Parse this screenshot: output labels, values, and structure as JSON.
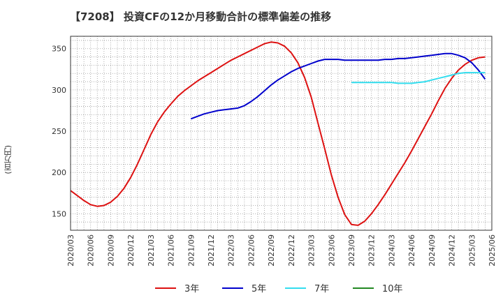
{
  "chart_data": {
    "type": "line",
    "title": "【7208】 投資CFの12か月移動合計の標準偏差の推移",
    "ylabel": "(百万円)",
    "xlabel": "",
    "ylim": [
      130,
      365
    ],
    "xlim": [
      "2020/03",
      "2025/06"
    ],
    "yticks": [
      150,
      200,
      250,
      300,
      350
    ],
    "xticks": [
      "2020/03",
      "2020/06",
      "2020/09",
      "2020/12",
      "2021/03",
      "2021/06",
      "2021/09",
      "2021/12",
      "2022/03",
      "2022/06",
      "2022/09",
      "2022/12",
      "2023/03",
      "2023/06",
      "2023/09",
      "2023/12",
      "2024/03",
      "2024/06",
      "2024/09",
      "2024/12",
      "2025/03",
      "2025/06"
    ],
    "grid": true,
    "legend_position": "bottom",
    "series": [
      {
        "name": "3年",
        "color": "#dd1111",
        "points": [
          [
            "2020/03",
            178
          ],
          [
            "2020/04",
            172
          ],
          [
            "2020/05",
            166
          ],
          [
            "2020/06",
            161
          ],
          [
            "2020/07",
            159
          ],
          [
            "2020/08",
            160
          ],
          [
            "2020/09",
            164
          ],
          [
            "2020/10",
            171
          ],
          [
            "2020/11",
            181
          ],
          [
            "2020/12",
            194
          ],
          [
            "2021/01",
            210
          ],
          [
            "2021/02",
            228
          ],
          [
            "2021/03",
            246
          ],
          [
            "2021/04",
            261
          ],
          [
            "2021/05",
            273
          ],
          [
            "2021/06",
            283
          ],
          [
            "2021/07",
            292
          ],
          [
            "2021/08",
            299
          ],
          [
            "2021/09",
            305
          ],
          [
            "2021/10",
            311
          ],
          [
            "2021/11",
            316
          ],
          [
            "2021/12",
            321
          ],
          [
            "2022/01",
            326
          ],
          [
            "2022/02",
            331
          ],
          [
            "2022/03",
            336
          ],
          [
            "2022/04",
            340
          ],
          [
            "2022/05",
            344
          ],
          [
            "2022/06",
            348
          ],
          [
            "2022/07",
            352
          ],
          [
            "2022/08",
            356
          ],
          [
            "2022/09",
            358
          ],
          [
            "2022/10",
            357
          ],
          [
            "2022/11",
            353
          ],
          [
            "2022/12",
            345
          ],
          [
            "2023/01",
            333
          ],
          [
            "2023/02",
            315
          ],
          [
            "2023/03",
            291
          ],
          [
            "2023/04",
            260
          ],
          [
            "2023/05",
            229
          ],
          [
            "2023/06",
            197
          ],
          [
            "2023/07",
            170
          ],
          [
            "2023/08",
            149
          ],
          [
            "2023/09",
            137
          ],
          [
            "2023/10",
            136
          ],
          [
            "2023/11",
            141
          ],
          [
            "2023/12",
            150
          ],
          [
            "2024/01",
            161
          ],
          [
            "2024/02",
            173
          ],
          [
            "2024/03",
            186
          ],
          [
            "2024/04",
            199
          ],
          [
            "2024/05",
            212
          ],
          [
            "2024/06",
            226
          ],
          [
            "2024/07",
            241
          ],
          [
            "2024/08",
            256
          ],
          [
            "2024/09",
            271
          ],
          [
            "2024/10",
            287
          ],
          [
            "2024/11",
            302
          ],
          [
            "2024/12",
            314
          ],
          [
            "2025/01",
            324
          ],
          [
            "2025/02",
            331
          ],
          [
            "2025/03",
            336
          ],
          [
            "2025/04",
            339
          ],
          [
            "2025/05",
            340
          ]
        ]
      },
      {
        "name": "5年",
        "color": "#0000cc",
        "points": [
          [
            "2021/09",
            265
          ],
          [
            "2021/10",
            268
          ],
          [
            "2021/11",
            271
          ],
          [
            "2021/12",
            273
          ],
          [
            "2022/01",
            275
          ],
          [
            "2022/02",
            276
          ],
          [
            "2022/03",
            277
          ],
          [
            "2022/04",
            278
          ],
          [
            "2022/05",
            281
          ],
          [
            "2022/06",
            286
          ],
          [
            "2022/07",
            292
          ],
          [
            "2022/08",
            299
          ],
          [
            "2022/09",
            306
          ],
          [
            "2022/10",
            312
          ],
          [
            "2022/11",
            317
          ],
          [
            "2022/12",
            322
          ],
          [
            "2023/01",
            326
          ],
          [
            "2023/02",
            329
          ],
          [
            "2023/03",
            332
          ],
          [
            "2023/04",
            335
          ],
          [
            "2023/05",
            337
          ],
          [
            "2023/06",
            337
          ],
          [
            "2023/07",
            337
          ],
          [
            "2023/08",
            336
          ],
          [
            "2023/09",
            336
          ],
          [
            "2023/10",
            336
          ],
          [
            "2023/11",
            336
          ],
          [
            "2023/12",
            336
          ],
          [
            "2024/01",
            336
          ],
          [
            "2024/02",
            337
          ],
          [
            "2024/03",
            337
          ],
          [
            "2024/04",
            338
          ],
          [
            "2024/05",
            338
          ],
          [
            "2024/06",
            339
          ],
          [
            "2024/07",
            340
          ],
          [
            "2024/08",
            341
          ],
          [
            "2024/09",
            342
          ],
          [
            "2024/10",
            343
          ],
          [
            "2024/11",
            344
          ],
          [
            "2024/12",
            344
          ],
          [
            "2025/01",
            342
          ],
          [
            "2025/02",
            339
          ],
          [
            "2025/03",
            333
          ],
          [
            "2025/04",
            324
          ],
          [
            "2025/05",
            313
          ]
        ]
      },
      {
        "name": "7年",
        "color": "#33ddee",
        "points": [
          [
            "2023/09",
            309
          ],
          [
            "2023/10",
            309
          ],
          [
            "2023/11",
            309
          ],
          [
            "2023/12",
            309
          ],
          [
            "2024/01",
            309
          ],
          [
            "2024/02",
            309
          ],
          [
            "2024/03",
            309
          ],
          [
            "2024/04",
            308
          ],
          [
            "2024/05",
            308
          ],
          [
            "2024/06",
            308
          ],
          [
            "2024/07",
            309
          ],
          [
            "2024/08",
            310
          ],
          [
            "2024/09",
            312
          ],
          [
            "2024/10",
            314
          ],
          [
            "2024/11",
            316
          ],
          [
            "2024/12",
            318
          ],
          [
            "2025/01",
            320
          ],
          [
            "2025/02",
            321
          ],
          [
            "2025/03",
            321
          ],
          [
            "2025/04",
            321
          ],
          [
            "2025/05",
            321
          ]
        ]
      },
      {
        "name": "10年",
        "color": "#228822",
        "points": []
      }
    ]
  }
}
